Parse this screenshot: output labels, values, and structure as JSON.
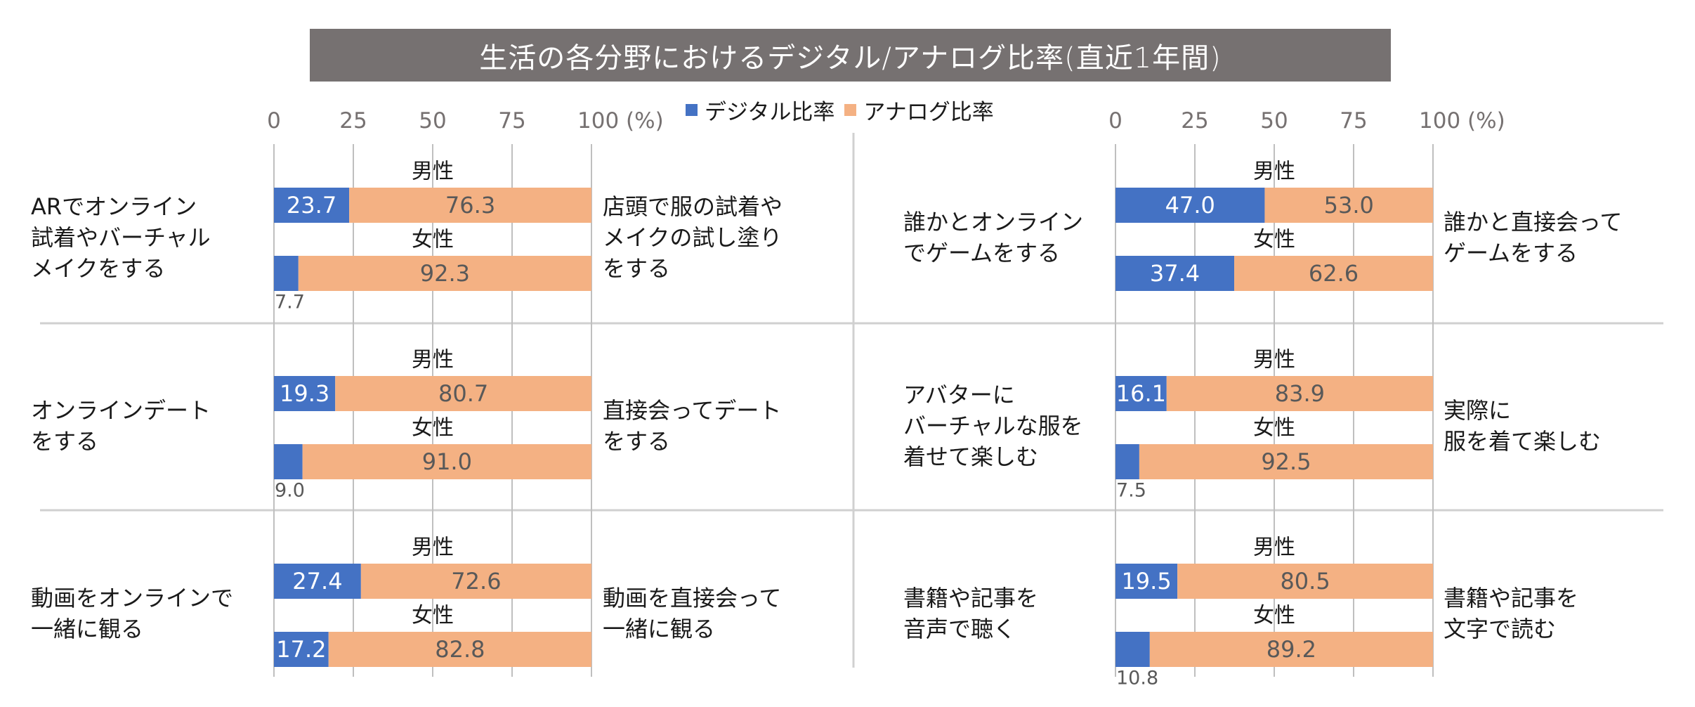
{
  "chart_data": {
    "type": "bar",
    "subtype": "stacked-horizontal-100",
    "title": "生活の各分野におけるデジタル/アナログ比率(直近1年間)",
    "legend": {
      "position": "top-center",
      "entries": [
        {
          "name": "デジタル比率",
          "color": "#4472C4"
        },
        {
          "name": "アナログ比率",
          "color": "#F4B183"
        }
      ]
    },
    "xlim": [
      0,
      100
    ],
    "x_ticks": [
      "0",
      "25",
      "50",
      "75",
      "100 (%)"
    ],
    "x_tick_values": [
      0,
      25,
      50,
      75,
      100
    ],
    "grid": true,
    "groups": [
      "男性",
      "女性"
    ],
    "panels": [
      {
        "digital_label": "ARでオンライン\n試着やバーチャル\nメイクをする",
        "analog_label": "店頭で服の試着や\nメイクの試し塗り\nをする",
        "series": [
          {
            "group": "男性",
            "digital": 23.7,
            "analog": 76.3,
            "digital_text": "23.7",
            "analog_text": "76.3"
          },
          {
            "group": "女性",
            "digital": 7.7,
            "analog": 92.3,
            "digital_text": "7.7",
            "analog_text": "92.3"
          }
        ]
      },
      {
        "digital_label": "誰かとオンライン\nでゲームをする",
        "analog_label": "誰かと直接会って\nゲームをする",
        "series": [
          {
            "group": "男性",
            "digital": 47.0,
            "analog": 53.0,
            "digital_text": "47.0",
            "analog_text": "53.0"
          },
          {
            "group": "女性",
            "digital": 37.4,
            "analog": 62.6,
            "digital_text": "37.4",
            "analog_text": "62.6"
          }
        ]
      },
      {
        "digital_label": "オンラインデート\nをする",
        "analog_label": "直接会ってデート\nをする",
        "series": [
          {
            "group": "男性",
            "digital": 19.3,
            "analog": 80.7,
            "digital_text": "19.3",
            "analog_text": "80.7"
          },
          {
            "group": "女性",
            "digital": 9.0,
            "analog": 91.0,
            "digital_text": "9.0",
            "analog_text": "91.0"
          }
        ]
      },
      {
        "digital_label": "アバターに\nバーチャルな服を\n着せて楽しむ",
        "analog_label": "実際に\n服を着て楽しむ",
        "series": [
          {
            "group": "男性",
            "digital": 16.1,
            "analog": 83.9,
            "digital_text": "16.1",
            "analog_text": "83.9"
          },
          {
            "group": "女性",
            "digital": 7.5,
            "analog": 92.5,
            "digital_text": "7.5",
            "analog_text": "92.5"
          }
        ]
      },
      {
        "digital_label": "動画をオンラインで\n一緒に観る",
        "analog_label": "動画を直接会って\n一緒に観る",
        "series": [
          {
            "group": "男性",
            "digital": 27.4,
            "analog": 72.6,
            "digital_text": "27.4",
            "analog_text": "72.6"
          },
          {
            "group": "女性",
            "digital": 17.2,
            "analog": 82.8,
            "digital_text": "17.2",
            "analog_text": "82.8"
          }
        ]
      },
      {
        "digital_label": "書籍や記事を\n音声で聴く",
        "analog_label": "書籍や記事を\n文字で読む",
        "series": [
          {
            "group": "男性",
            "digital": 19.5,
            "analog": 80.5,
            "digital_text": "19.5",
            "analog_text": "80.5"
          },
          {
            "group": "女性",
            "digital": 10.8,
            "analog": 89.2,
            "digital_text": "10.8",
            "analog_text": "89.2"
          }
        ]
      }
    ]
  },
  "colors": {
    "digital": "#4472C4",
    "analog": "#F4B183",
    "title_bg": "#767171",
    "grid": "#BFBFBF",
    "divider": "#D0D0D0",
    "tick_text": "#767171",
    "value_text_on_analog": "#595959",
    "value_text_on_digital": "#FFFFFF",
    "label_text": "#1A1A1A"
  }
}
